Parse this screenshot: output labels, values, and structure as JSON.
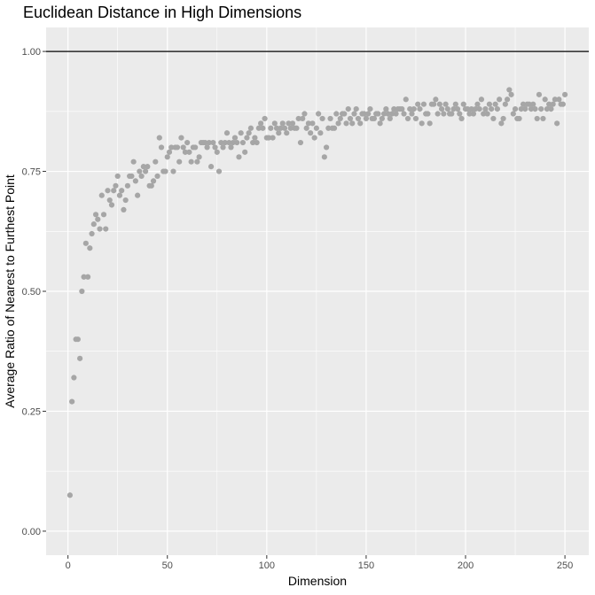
{
  "chart_data": {
    "type": "scatter",
    "title": "Euclidean Distance in High Dimensions",
    "xlabel": "Dimension",
    "ylabel": "Average Ratio of Nearest to Furthest Point",
    "xlim": [
      -11,
      262
    ],
    "ylim": [
      -0.05,
      1.05
    ],
    "x_ticks": [
      0,
      50,
      100,
      150,
      200,
      250
    ],
    "x_tick_labels": [
      "0",
      "50",
      "100",
      "150",
      "200",
      "250"
    ],
    "y_ticks": [
      0,
      0.25,
      0.5,
      0.75,
      1.0
    ],
    "y_tick_labels": [
      "0.00",
      "0.25",
      "0.50",
      "0.75",
      "1.00"
    ],
    "grid": true,
    "reference_line": {
      "y": 1.0
    },
    "series": [
      {
        "points": [
          [
            1,
            0.075
          ],
          [
            2,
            0.27
          ],
          [
            3,
            0.32
          ],
          [
            4,
            0.4
          ],
          [
            5,
            0.4
          ],
          [
            6,
            0.36
          ],
          [
            7,
            0.5
          ],
          [
            8,
            0.53
          ],
          [
            9,
            0.6
          ],
          [
            10,
            0.53
          ],
          [
            11,
            0.59
          ],
          [
            12,
            0.62
          ],
          [
            13,
            0.64
          ],
          [
            14,
            0.66
          ],
          [
            15,
            0.65
          ],
          [
            16,
            0.63
          ],
          [
            17,
            0.7
          ],
          [
            18,
            0.66
          ],
          [
            19,
            0.63
          ],
          [
            20,
            0.71
          ],
          [
            21,
            0.69
          ],
          [
            22,
            0.68
          ],
          [
            23,
            0.71
          ],
          [
            24,
            0.72
          ],
          [
            25,
            0.74
          ],
          [
            26,
            0.7
          ],
          [
            27,
            0.71
          ],
          [
            28,
            0.67
          ],
          [
            29,
            0.69
          ],
          [
            30,
            0.72
          ],
          [
            31,
            0.74
          ],
          [
            32,
            0.74
          ],
          [
            33,
            0.77
          ],
          [
            34,
            0.73
          ],
          [
            35,
            0.7
          ],
          [
            36,
            0.75
          ],
          [
            37,
            0.74
          ],
          [
            38,
            0.76
          ],
          [
            39,
            0.75
          ],
          [
            40,
            0.76
          ],
          [
            41,
            0.72
          ],
          [
            42,
            0.72
          ],
          [
            43,
            0.73
          ],
          [
            44,
            0.77
          ],
          [
            45,
            0.74
          ],
          [
            46,
            0.82
          ],
          [
            47,
            0.8
          ],
          [
            48,
            0.75
          ],
          [
            49,
            0.75
          ],
          [
            50,
            0.78
          ],
          [
            51,
            0.79
          ],
          [
            52,
            0.8
          ],
          [
            53,
            0.75
          ],
          [
            54,
            0.8
          ],
          [
            55,
            0.8
          ],
          [
            56,
            0.77
          ],
          [
            57,
            0.82
          ],
          [
            58,
            0.8
          ],
          [
            59,
            0.79
          ],
          [
            60,
            0.81
          ],
          [
            61,
            0.79
          ],
          [
            62,
            0.77
          ],
          [
            63,
            0.8
          ],
          [
            64,
            0.8
          ],
          [
            65,
            0.77
          ],
          [
            66,
            0.78
          ],
          [
            67,
            0.81
          ],
          [
            68,
            0.81
          ],
          [
            69,
            0.81
          ],
          [
            70,
            0.8
          ],
          [
            71,
            0.81
          ],
          [
            72,
            0.76
          ],
          [
            73,
            0.81
          ],
          [
            74,
            0.8
          ],
          [
            75,
            0.79
          ],
          [
            76,
            0.75
          ],
          [
            77,
            0.81
          ],
          [
            78,
            0.8
          ],
          [
            79,
            0.81
          ],
          [
            80,
            0.83
          ],
          [
            81,
            0.81
          ],
          [
            82,
            0.8
          ],
          [
            83,
            0.81
          ],
          [
            84,
            0.82
          ],
          [
            85,
            0.81
          ],
          [
            86,
            0.78
          ],
          [
            87,
            0.83
          ],
          [
            88,
            0.81
          ],
          [
            89,
            0.79
          ],
          [
            90,
            0.82
          ],
          [
            91,
            0.83
          ],
          [
            92,
            0.84
          ],
          [
            93,
            0.81
          ],
          [
            94,
            0.82
          ],
          [
            95,
            0.81
          ],
          [
            96,
            0.84
          ],
          [
            97,
            0.85
          ],
          [
            98,
            0.84
          ],
          [
            99,
            0.86
          ],
          [
            100,
            0.82
          ],
          [
            101,
            0.82
          ],
          [
            102,
            0.84
          ],
          [
            103,
            0.82
          ],
          [
            104,
            0.85
          ],
          [
            105,
            0.84
          ],
          [
            106,
            0.83
          ],
          [
            107,
            0.84
          ],
          [
            108,
            0.85
          ],
          [
            109,
            0.84
          ],
          [
            110,
            0.83
          ],
          [
            111,
            0.85
          ],
          [
            112,
            0.84
          ],
          [
            113,
            0.85
          ],
          [
            114,
            0.84
          ],
          [
            115,
            0.84
          ],
          [
            116,
            0.86
          ],
          [
            117,
            0.81
          ],
          [
            118,
            0.86
          ],
          [
            119,
            0.87
          ],
          [
            120,
            0.84
          ],
          [
            121,
            0.85
          ],
          [
            122,
            0.83
          ],
          [
            123,
            0.85
          ],
          [
            124,
            0.82
          ],
          [
            125,
            0.84
          ],
          [
            126,
            0.87
          ],
          [
            127,
            0.83
          ],
          [
            128,
            0.86
          ],
          [
            129,
            0.78
          ],
          [
            130,
            0.8
          ],
          [
            131,
            0.84
          ],
          [
            132,
            0.86
          ],
          [
            133,
            0.84
          ],
          [
            134,
            0.84
          ],
          [
            135,
            0.87
          ],
          [
            136,
            0.85
          ],
          [
            137,
            0.86
          ],
          [
            138,
            0.87
          ],
          [
            139,
            0.87
          ],
          [
            140,
            0.85
          ],
          [
            141,
            0.88
          ],
          [
            142,
            0.86
          ],
          [
            143,
            0.85
          ],
          [
            144,
            0.87
          ],
          [
            145,
            0.88
          ],
          [
            146,
            0.86
          ],
          [
            147,
            0.85
          ],
          [
            148,
            0.87
          ],
          [
            149,
            0.87
          ],
          [
            150,
            0.86
          ],
          [
            151,
            0.87
          ],
          [
            152,
            0.88
          ],
          [
            153,
            0.86
          ],
          [
            154,
            0.86
          ],
          [
            155,
            0.87
          ],
          [
            156,
            0.87
          ],
          [
            157,
            0.85
          ],
          [
            158,
            0.86
          ],
          [
            159,
            0.87
          ],
          [
            160,
            0.88
          ],
          [
            161,
            0.87
          ],
          [
            162,
            0.86
          ],
          [
            163,
            0.87
          ],
          [
            164,
            0.88
          ],
          [
            165,
            0.87
          ],
          [
            166,
            0.88
          ],
          [
            167,
            0.88
          ],
          [
            168,
            0.88
          ],
          [
            169,
            0.87
          ],
          [
            170,
            0.9
          ],
          [
            171,
            0.86
          ],
          [
            172,
            0.88
          ],
          [
            173,
            0.87
          ],
          [
            174,
            0.88
          ],
          [
            175,
            0.86
          ],
          [
            176,
            0.89
          ],
          [
            177,
            0.88
          ],
          [
            178,
            0.85
          ],
          [
            179,
            0.89
          ],
          [
            180,
            0.87
          ],
          [
            181,
            0.87
          ],
          [
            182,
            0.85
          ],
          [
            183,
            0.89
          ],
          [
            184,
            0.89
          ],
          [
            185,
            0.9
          ],
          [
            186,
            0.87
          ],
          [
            187,
            0.89
          ],
          [
            188,
            0.88
          ],
          [
            189,
            0.87
          ],
          [
            190,
            0.89
          ],
          [
            191,
            0.88
          ],
          [
            192,
            0.87
          ],
          [
            193,
            0.87
          ],
          [
            194,
            0.88
          ],
          [
            195,
            0.89
          ],
          [
            196,
            0.88
          ],
          [
            197,
            0.87
          ],
          [
            198,
            0.86
          ],
          [
            199,
            0.89
          ],
          [
            200,
            0.88
          ],
          [
            201,
            0.88
          ],
          [
            202,
            0.87
          ],
          [
            203,
            0.88
          ],
          [
            204,
            0.87
          ],
          [
            205,
            0.88
          ],
          [
            206,
            0.89
          ],
          [
            207,
            0.88
          ],
          [
            208,
            0.9
          ],
          [
            209,
            0.87
          ],
          [
            210,
            0.88
          ],
          [
            211,
            0.87
          ],
          [
            212,
            0.89
          ],
          [
            213,
            0.88
          ],
          [
            214,
            0.86
          ],
          [
            215,
            0.89
          ],
          [
            216,
            0.88
          ],
          [
            217,
            0.9
          ],
          [
            218,
            0.85
          ],
          [
            219,
            0.86
          ],
          [
            220,
            0.89
          ],
          [
            221,
            0.9
          ],
          [
            222,
            0.92
          ],
          [
            223,
            0.91
          ],
          [
            224,
            0.87
          ],
          [
            225,
            0.88
          ],
          [
            226,
            0.86
          ],
          [
            227,
            0.86
          ],
          [
            228,
            0.88
          ],
          [
            229,
            0.89
          ],
          [
            230,
            0.88
          ],
          [
            231,
            0.89
          ],
          [
            232,
            0.89
          ],
          [
            233,
            0.88
          ],
          [
            234,
            0.89
          ],
          [
            235,
            0.88
          ],
          [
            236,
            0.86
          ],
          [
            237,
            0.91
          ],
          [
            238,
            0.88
          ],
          [
            239,
            0.86
          ],
          [
            240,
            0.9
          ],
          [
            241,
            0.88
          ],
          [
            242,
            0.89
          ],
          [
            243,
            0.88
          ],
          [
            244,
            0.89
          ],
          [
            245,
            0.9
          ],
          [
            246,
            0.85
          ],
          [
            247,
            0.9
          ],
          [
            248,
            0.89
          ],
          [
            249,
            0.89
          ],
          [
            250,
            0.91
          ]
        ]
      }
    ],
    "colors": {
      "points": "#a6a6a6",
      "panel_background": "#ebebeb",
      "major_grid": "#ffffff",
      "reference_line": "#000000",
      "tick_label": "#4d4d4d",
      "text": "#000000"
    }
  }
}
